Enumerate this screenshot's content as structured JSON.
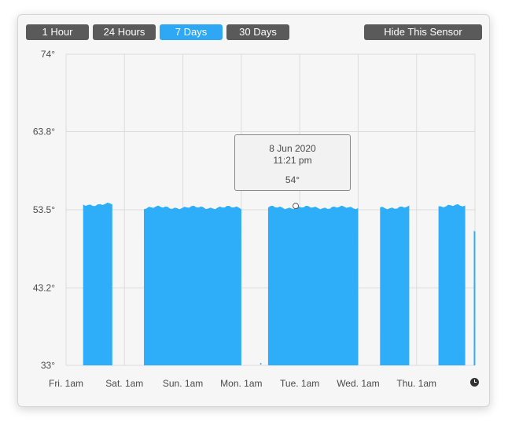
{
  "range_buttons": [
    {
      "label": "1 Hour",
      "selected": false
    },
    {
      "label": "24 Hours",
      "selected": false
    },
    {
      "label": "7 Days",
      "selected": true
    },
    {
      "label": "30 Days",
      "selected": false
    }
  ],
  "hide_sensor_label": "Hide This Sensor",
  "tooltip": {
    "date": "8 Jun 2020",
    "time": "11:21 pm",
    "value": "54°"
  },
  "colors": {
    "series": "#2eaef8",
    "active_button": "#2ea8f5",
    "button": "#5a5a5a",
    "grid": "#dcdcdc"
  },
  "chart_data": {
    "type": "area",
    "xlabel": "",
    "ylabel": "",
    "y_ticks": [
      "74°",
      "63.8°",
      "53.5°",
      "43.2°",
      "33°"
    ],
    "y_tick_values": [
      74,
      63.8,
      53.5,
      43.2,
      33
    ],
    "ylim": [
      33,
      74
    ],
    "x_ticks": [
      "Fri. 1am",
      "Sat. 1am",
      "Sun. 1am",
      "Mon. 1am",
      "Tue. 1am",
      "Wed. 1am",
      "Thu. 1am"
    ],
    "xlim": [
      "Fri. 1am",
      "Thu. 1am + 1 day"
    ],
    "grid": true,
    "segments": [
      {
        "start": "Fri. 8:00am",
        "end": "Fri. 8:00pm",
        "value": 54.2
      },
      {
        "start": "Sat. 9:00am",
        "end": "Mon. 1:00am",
        "value": 53.8
      },
      {
        "start": "Mon. 12:00pm",
        "end": "Wed. 1:00am",
        "value": 53.8
      },
      {
        "start": "Wed. 10:00am",
        "end": "Wed. 10:00pm",
        "value": 53.8
      },
      {
        "start": "Thu. 10:00am",
        "end": "Thu. 9:00pm",
        "value": 54.0
      },
      {
        "start": "Fri. 12:30am",
        "end": "Fri. 1:00am",
        "value": 50.6
      }
    ],
    "highlight": {
      "x": "8 Jun 2020 11:21 pm",
      "y": 54
    }
  }
}
